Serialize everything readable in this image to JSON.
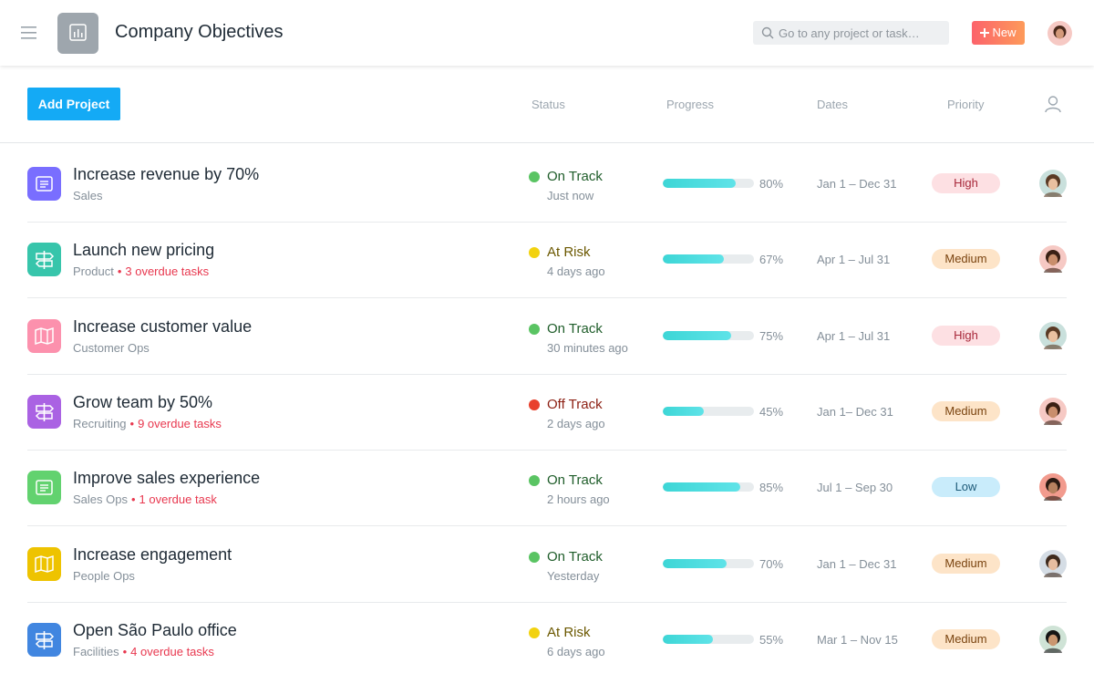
{
  "header": {
    "title": "Company Objectives",
    "search_placeholder": "Go to any project or task…",
    "new_button": "New"
  },
  "toolbar": {
    "add_button": "Add Project",
    "columns": [
      "Status",
      "Progress",
      "Dates",
      "Priority"
    ]
  },
  "separator": "•",
  "projects": [
    {
      "name": "Increase revenue by 70%",
      "team": "Sales",
      "overdue": null,
      "icon_color": "#796eff",
      "status": "On Track",
      "status_color": "#5ac463",
      "updated": "Just now",
      "progress": 80,
      "progress_label": "80%",
      "dates": "Jan 1 – Dec 31",
      "priority": "High",
      "priority_color": "#fde0e3"
    },
    {
      "name": "Launch new pricing",
      "team": "Product",
      "overdue": "3 overdue tasks",
      "icon_color": "#37c5ab",
      "status": "At Risk",
      "status_color": "#f2d20f",
      "updated": "4 days ago",
      "progress": 67,
      "progress_label": "67%",
      "dates": "Apr 1 – Jul 31",
      "priority": "Medium",
      "priority_color": "#fde4c8"
    },
    {
      "name": "Increase customer value",
      "team": "Customer Ops",
      "overdue": null,
      "icon_color": "#fc91ad",
      "status": "On Track",
      "status_color": "#5ac463",
      "updated": "30 minutes ago",
      "progress": 75,
      "progress_label": "75%",
      "dates": "Apr 1 – Jul 31",
      "priority": "High",
      "priority_color": "#fde0e3"
    },
    {
      "name": "Grow team by 50%",
      "team": "Recruiting",
      "overdue": "9 overdue tasks",
      "icon_color": "#aa62e3",
      "status": "Off Track",
      "status_color": "#e8402d",
      "updated": "2 days ago",
      "progress": 45,
      "progress_label": "45%",
      "dates": "Jan 1– Dec 31",
      "priority": "Medium",
      "priority_color": "#fde4c8"
    },
    {
      "name": "Improve sales experience",
      "team": "Sales Ops",
      "overdue": "1 overdue task",
      "icon_color": "#62d26f",
      "status": "On Track",
      "status_color": "#5ac463",
      "updated": "2 hours ago",
      "progress": 85,
      "progress_label": "85%",
      "dates": "Jul 1 – Sep 30",
      "priority": "Low",
      "priority_color": "#c9ecfb"
    },
    {
      "name": "Increase engagement",
      "team": "People Ops",
      "overdue": null,
      "icon_color": "#eec300",
      "status": "On Track",
      "status_color": "#5ac463",
      "updated": "Yesterday",
      "progress": 70,
      "progress_label": "70%",
      "dates": "Jan 1 – Dec 31",
      "priority": "Medium",
      "priority_color": "#fde4c8"
    },
    {
      "name": "Open São Paulo office",
      "team": "Facilities",
      "overdue": "4 overdue tasks",
      "icon_color": "#4186e0",
      "status": "At Risk",
      "status_color": "#f2d20f",
      "updated": "6 days ago",
      "progress": 55,
      "progress_label": "55%",
      "dates": "Mar 1 – Nov 15",
      "priority": "Medium",
      "priority_color": "#fde4c8"
    }
  ]
}
